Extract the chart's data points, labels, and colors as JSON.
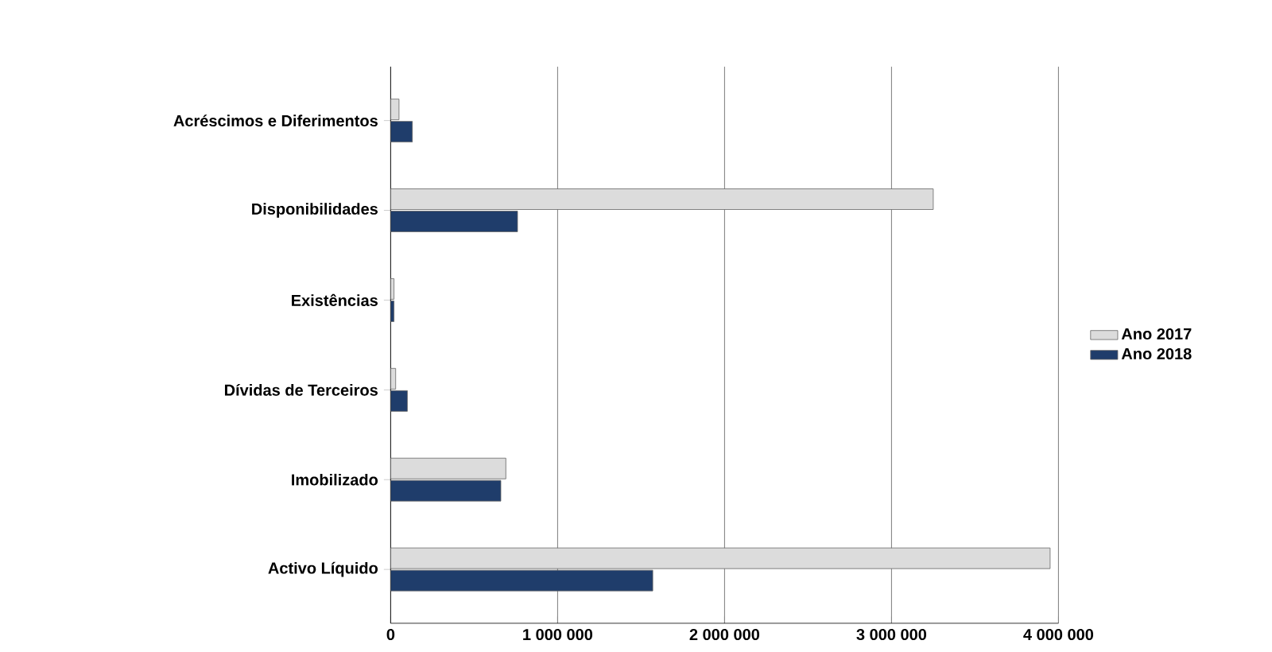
{
  "chart_data": {
    "type": "bar",
    "orientation": "horizontal",
    "categories": [
      "Acréscimos e Diferimentos",
      "Disponibilidades",
      "Existências",
      "Dívidas de Terceiros",
      "Imobilizado",
      "Activo Líquido"
    ],
    "series": [
      {
        "name": "Ano 2017",
        "color": "#dcdcdc",
        "values": [
          50000,
          3250000,
          20000,
          30000,
          690000,
          3950000
        ]
      },
      {
        "name": "Ano 2018",
        "color": "#1f3d6b",
        "values": [
          130000,
          760000,
          20000,
          100000,
          660000,
          1570000
        ]
      }
    ],
    "xlim": [
      0,
      4000000
    ],
    "xticks": [
      0,
      {
        "value": 1000000,
        "label": "1 000 000"
      },
      {
        "value": 2000000,
        "label": "2 000 000"
      },
      {
        "value": 3000000,
        "label": "3 000 000"
      },
      {
        "value": 4000000,
        "label": "4 000 000"
      }
    ],
    "grid": "x",
    "legend": "right"
  }
}
